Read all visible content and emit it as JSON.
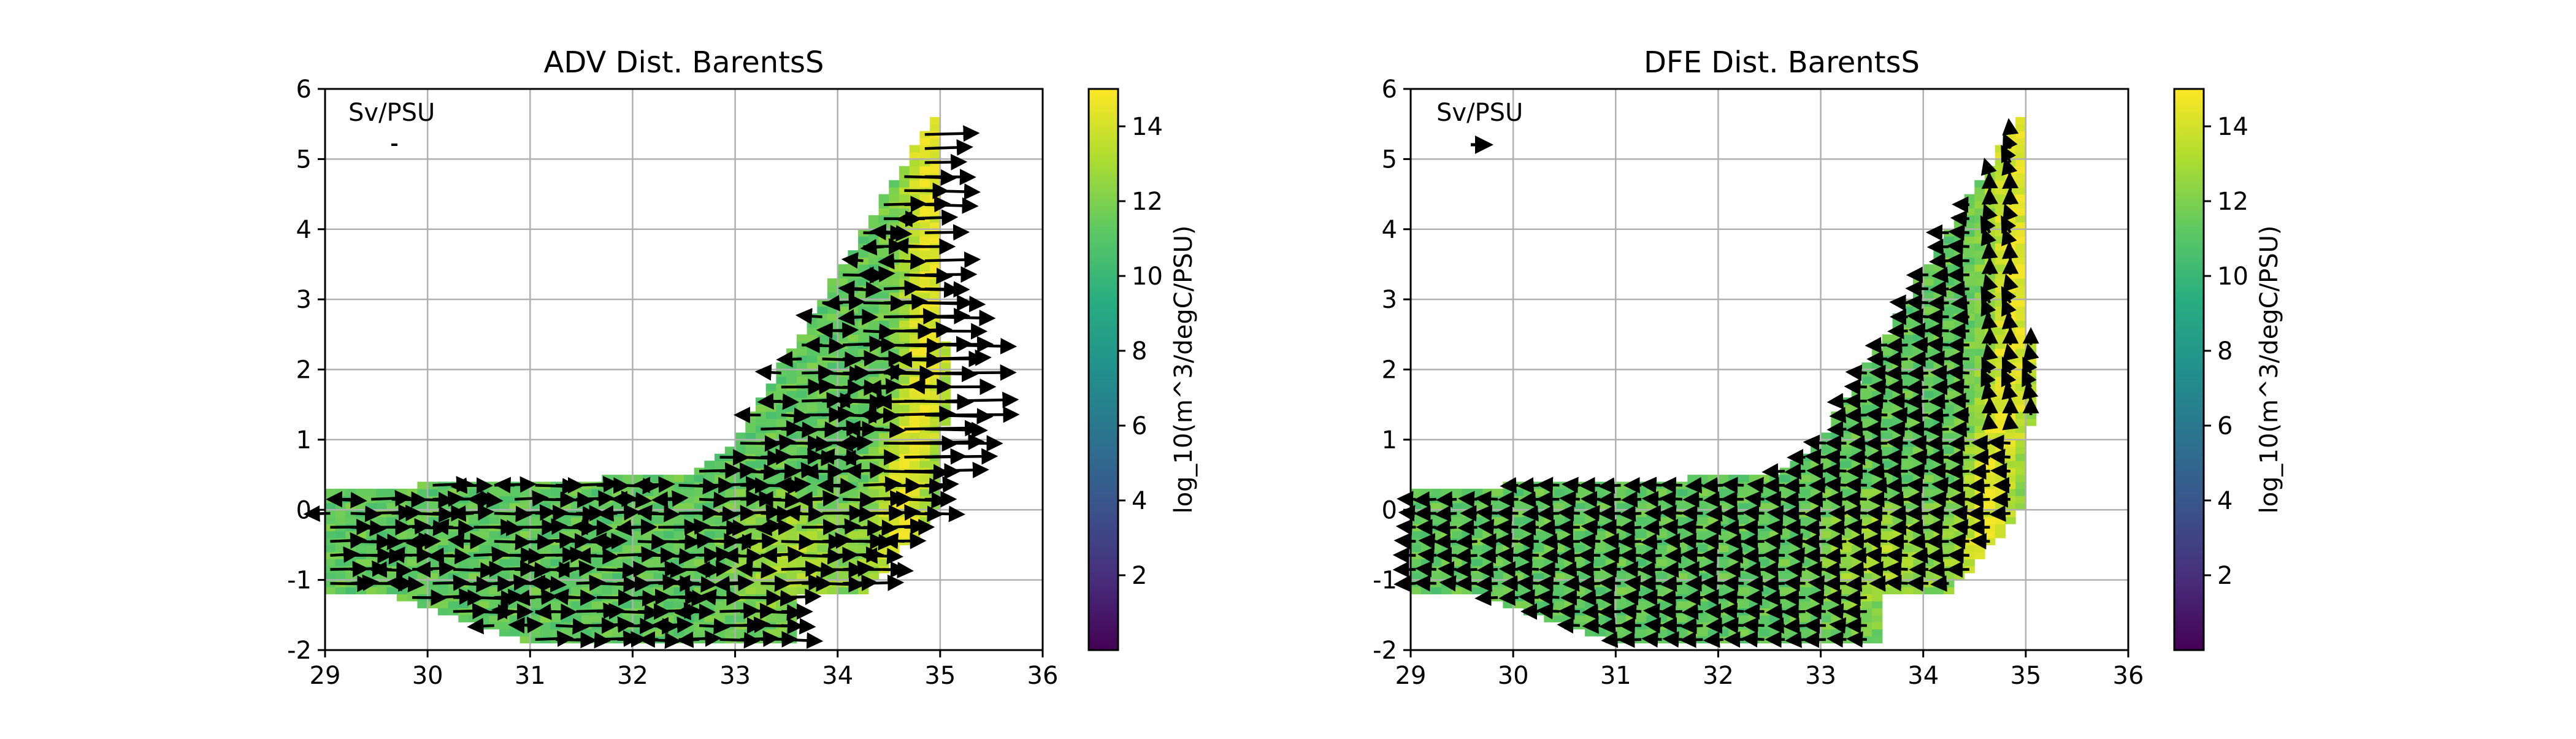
{
  "figure": {
    "background": "#ffffff"
  },
  "chart_data": [
    {
      "type": "heatmap",
      "title": "ADV Dist. BarentsS",
      "xlabel": "",
      "ylabel": "",
      "xlim": [
        29,
        36
      ],
      "ylim": [
        -2,
        6
      ],
      "x_ticks": [
        "29",
        "30",
        "31",
        "32",
        "33",
        "34",
        "35",
        "36"
      ],
      "y_ticks": [
        "-2",
        "-1",
        "0",
        "1",
        "2",
        "3",
        "4",
        "5",
        "6"
      ],
      "grid": true,
      "quiver_key_label": "Sv/PSU",
      "quiver_key_length": 0.05,
      "colorbar": {
        "label": "log_10(m^3/degC/PSU)",
        "range": [
          0,
          15
        ],
        "ticks": [
          "2",
          "4",
          "6",
          "8",
          "10",
          "12",
          "14"
        ],
        "colormap": "viridis"
      },
      "field": {
        "cell_dx": 0.1,
        "cell_dy": 0.1,
        "base_value": 11.3,
        "notes": "T-S binned transport; high values (yellow) along ridge near S≈34.8"
      },
      "arrows_description": "Mostly eastward arrows of varying magnitude; strongest (~0.7 Sv/PSU) at S 34.5-36, T 0.5-3"
    },
    {
      "type": "heatmap",
      "title": "DFE Dist. BarentsS",
      "xlabel": "",
      "ylabel": "",
      "xlim": [
        29,
        36
      ],
      "ylim": [
        -2,
        6
      ],
      "x_ticks": [
        "29",
        "30",
        "31",
        "32",
        "33",
        "34",
        "35",
        "36"
      ],
      "y_ticks": [
        "-2",
        "-1",
        "0",
        "1",
        "2",
        "3",
        "4",
        "5",
        "6"
      ],
      "grid": true,
      "quiver_key_label": "Sv/PSU",
      "quiver_key_length": 0.2,
      "colorbar": {
        "label": "log_10(m^3/degC/PSU)",
        "range": [
          0,
          15
        ],
        "ticks": [
          "2",
          "4",
          "6",
          "8",
          "10",
          "12",
          "14"
        ],
        "colormap": "viridis"
      },
      "field": {
        "cell_dx": 0.1,
        "cell_dy": 0.1,
        "base_value": 11.3,
        "notes": "Same T-S footprint as ADV"
      },
      "arrows_description": "Mostly westward arrows; northward arrows along S≈34.9 ridge"
    }
  ]
}
